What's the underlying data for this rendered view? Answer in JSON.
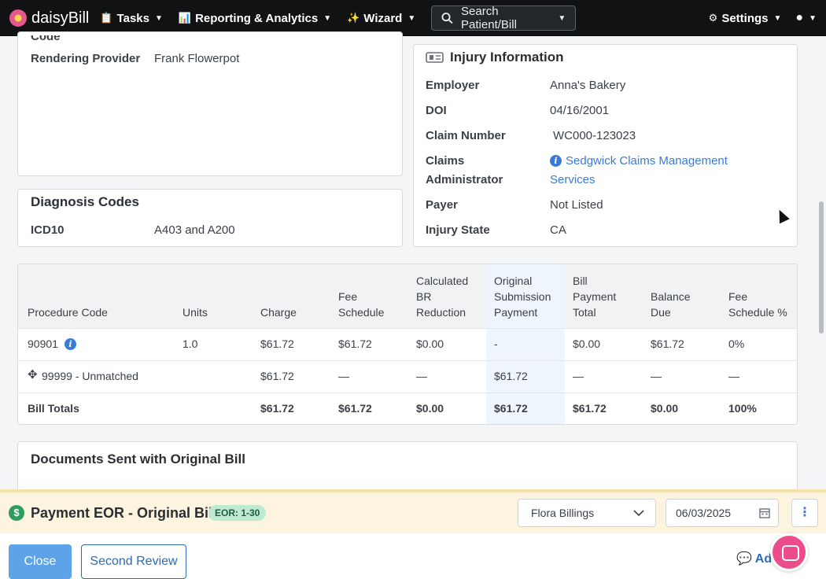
{
  "nav": {
    "brand": "daisyBill",
    "tasks": "Tasks",
    "reporting": "Reporting & Analytics",
    "wizard": "Wizard",
    "search_placeholder": "Search Patient/Bill",
    "settings": "Settings"
  },
  "provider_card": {
    "cut_label": "Code",
    "rendering_provider_label": "Rendering Provider",
    "rendering_provider_value": "Frank Flowerpot"
  },
  "diagnosis": {
    "title": "Diagnosis Codes",
    "label": "ICD10",
    "value": "A403 and A200"
  },
  "injury": {
    "title": "Injury Information",
    "employer_label": "Employer",
    "employer_value": "Anna's Bakery",
    "doi_label": "DOI",
    "doi_value": "04/16/2001",
    "claim_label": "Claim Number",
    "claim_value": "WC000-123023",
    "claims_admin_label_1": "Claims",
    "claims_admin_label_2": "Administrator",
    "claims_admin_value_1": "Sedgwick Claims Management",
    "claims_admin_value_2": "Services",
    "payer_label": "Payer",
    "payer_value": "Not Listed",
    "state_label": "Injury State",
    "state_value": "CA"
  },
  "table": {
    "headers": [
      [
        "Procedure Code"
      ],
      [
        "Units"
      ],
      [
        "Charge"
      ],
      [
        "Fee",
        "Schedule"
      ],
      [
        "Calculated",
        "BR",
        "Reduction"
      ],
      [
        "Original",
        "Submission",
        "Payment"
      ],
      [
        "Bill",
        "Payment",
        "Total"
      ],
      [
        "Balance",
        "Due"
      ],
      [
        "Fee",
        "Schedule %"
      ]
    ],
    "rows": [
      [
        "90901",
        "1.0",
        "$61.72",
        "$61.72",
        "$0.00",
        "-",
        "$0.00",
        "$61.72",
        "0%"
      ],
      [
        "99999 - Unmatched",
        "",
        "$61.72",
        "—",
        "—",
        "$61.72",
        "—",
        "—",
        "—"
      ]
    ],
    "totals": [
      "Bill Totals",
      "",
      "$61.72",
      "$61.72",
      "$0.00",
      "$61.72",
      "$61.72",
      "$0.00",
      "100%"
    ]
  },
  "documents": {
    "title": "Documents Sent with Original Bill"
  },
  "payment": {
    "title": "Payment EOR - Original Bill",
    "badge": "EOR: 1-30",
    "assignee": "Flora Billings",
    "date": "06/03/2025"
  },
  "footer": {
    "close": "Close",
    "second_review": "Second Review",
    "add_note": "Add"
  }
}
